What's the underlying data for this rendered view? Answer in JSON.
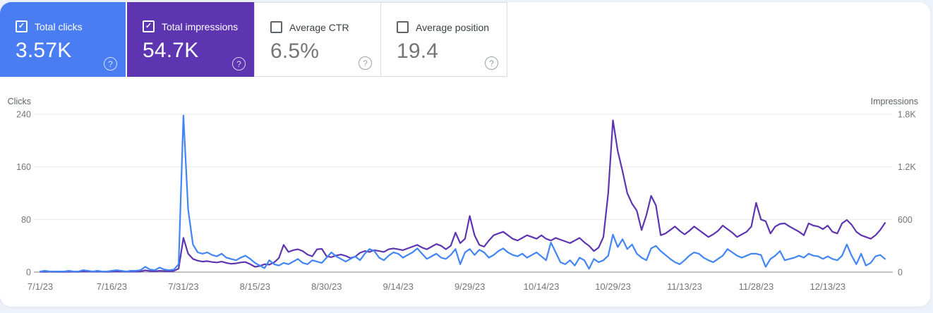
{
  "metric_cards": [
    {
      "label": "Total clicks",
      "value": "3.57K",
      "checked": "true",
      "bg": "#4a7cf2",
      "text": "#ffffff"
    },
    {
      "label": "Total impressions",
      "value": "54.7K",
      "checked": "true",
      "bg": "#5e35b1",
      "text": "#ffffff"
    },
    {
      "label": "Average CTR",
      "value": "6.5%",
      "checked": "false",
      "bg": "#ffffff",
      "text": "#757575"
    },
    {
      "label": "Average position",
      "value": "19.4",
      "checked": "false",
      "bg": "#ffffff",
      "text": "#757575"
    }
  ],
  "icons": {
    "help": "?"
  },
  "colors": {
    "clicks": "#4285f4",
    "impressions": "#5e35b1",
    "gridline": "#e8eaed",
    "zero_line": "#80868b"
  },
  "chart_data": {
    "type": "line",
    "title": "",
    "grid": "horizontal",
    "legend_position": "none",
    "x_is_daily_dates": true,
    "x_start_date": "7/1/23",
    "x_tick_labels": [
      "7/1/23",
      "7/16/23",
      "7/31/23",
      "8/15/23",
      "8/30/23",
      "9/14/23",
      "9/29/23",
      "10/14/23",
      "10/29/23",
      "11/13/23",
      "11/28/23",
      "12/13/23"
    ],
    "x_tick_day_indices": [
      0,
      15,
      30,
      45,
      60,
      75,
      90,
      105,
      120,
      135,
      150,
      165
    ],
    "axes": {
      "left": {
        "label": "Clicks",
        "max": 240,
        "ticks": [
          0,
          80,
          160,
          240
        ],
        "tick_labels": [
          "0",
          "80",
          "160",
          "240"
        ]
      },
      "right": {
        "label": "Impressions",
        "max": 1800,
        "ticks": [
          0,
          600,
          1200,
          1800
        ],
        "tick_labels": [
          "0",
          "600",
          "1.2K",
          "1.8K"
        ]
      }
    },
    "series": [
      {
        "name": "Clicks",
        "axis": "left",
        "color": "#4285f4",
        "values": [
          1,
          2,
          1,
          1,
          1,
          1,
          2,
          1,
          1,
          3,
          2,
          1,
          2,
          1,
          1,
          2,
          3,
          2,
          1,
          2,
          2,
          3,
          8,
          4,
          3,
          7,
          4,
          3,
          4,
          12,
          238,
          95,
          42,
          30,
          28,
          30,
          26,
          24,
          28,
          22,
          20,
          18,
          22,
          25,
          20,
          14,
          10,
          6,
          18,
          12,
          10,
          14,
          12,
          16,
          20,
          14,
          12,
          18,
          16,
          14,
          22,
          30,
          24,
          20,
          16,
          20,
          24,
          18,
          28,
          35,
          32,
          22,
          18,
          25,
          30,
          28,
          22,
          26,
          30,
          36,
          28,
          20,
          24,
          28,
          22,
          20,
          26,
          35,
          12,
          30,
          35,
          26,
          34,
          30,
          22,
          26,
          32,
          36,
          30,
          26,
          24,
          28,
          22,
          26,
          30,
          24,
          18,
          45,
          30,
          15,
          12,
          18,
          10,
          22,
          18,
          5,
          20,
          15,
          18,
          25,
          57,
          38,
          50,
          35,
          42,
          28,
          22,
          18,
          36,
          40,
          32,
          26,
          20,
          15,
          12,
          18,
          25,
          30,
          28,
          22,
          18,
          15,
          20,
          25,
          35,
          30,
          25,
          22,
          25,
          28,
          28,
          26,
          8,
          20,
          25,
          32,
          18,
          20,
          22,
          25,
          22,
          28,
          25,
          24,
          20,
          24,
          20,
          18,
          25,
          42,
          25,
          12,
          28,
          10,
          14,
          24,
          26,
          20
        ]
      },
      {
        "name": "Impressions",
        "axis": "right",
        "color": "#5e35b1",
        "values": [
          3,
          5,
          4,
          3,
          4,
          3,
          5,
          4,
          3,
          8,
          6,
          4,
          6,
          4,
          3,
          5,
          8,
          6,
          4,
          6,
          5,
          8,
          20,
          12,
          10,
          15,
          12,
          10,
          14,
          40,
          390,
          210,
          150,
          130,
          120,
          125,
          115,
          110,
          120,
          105,
          95,
          100,
          110,
          115,
          90,
          60,
          70,
          90,
          85,
          110,
          160,
          310,
          230,
          250,
          260,
          240,
          200,
          180,
          260,
          265,
          180,
          170,
          190,
          200,
          185,
          160,
          175,
          220,
          240,
          230,
          250,
          240,
          230,
          260,
          270,
          260,
          250,
          270,
          290,
          310,
          280,
          260,
          290,
          320,
          300,
          260,
          300,
          450,
          330,
          380,
          640,
          420,
          310,
          290,
          360,
          420,
          440,
          460,
          420,
          380,
          360,
          390,
          420,
          400,
          380,
          420,
          380,
          360,
          390,
          370,
          350,
          330,
          360,
          390,
          340,
          300,
          240,
          280,
          400,
          900,
          1730,
          1380,
          1150,
          900,
          780,
          700,
          480,
          650,
          870,
          760,
          420,
          440,
          480,
          520,
          470,
          430,
          470,
          520,
          480,
          440,
          400,
          430,
          470,
          530,
          490,
          450,
          400,
          430,
          460,
          520,
          790,
          600,
          580,
          440,
          520,
          550,
          555,
          520,
          490,
          460,
          420,
          555,
          530,
          520,
          490,
          530,
          460,
          440,
          555,
          595,
          540,
          460,
          420,
          400,
          380,
          420,
          480,
          560
        ]
      }
    ]
  }
}
